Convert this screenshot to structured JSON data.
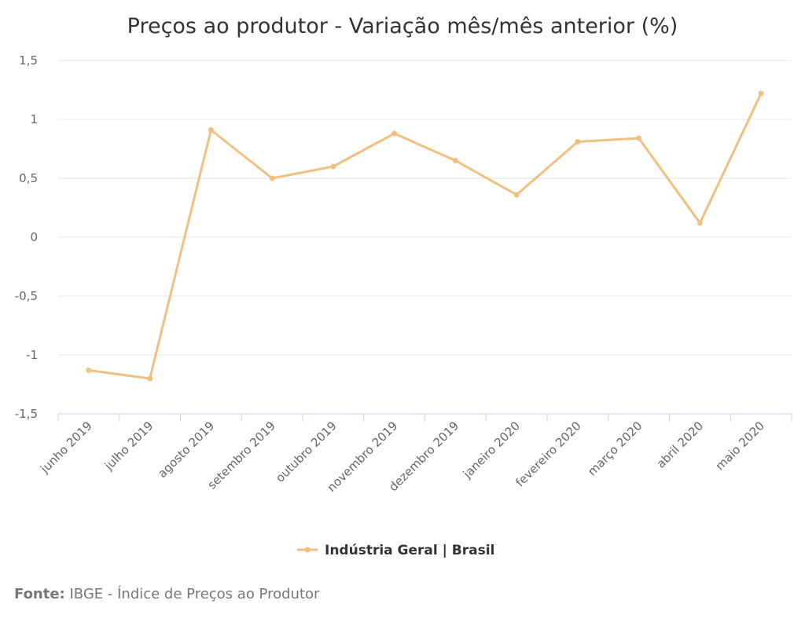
{
  "chart_data": {
    "type": "line",
    "title": "Preços ao produtor - Variação mês/mês anterior (%)",
    "categories": [
      "junho 2019",
      "julho 2019",
      "agosto 2019",
      "setembro 2019",
      "outubro 2019",
      "novembro 2019",
      "dezembro 2019",
      "janeiro 2020",
      "fevereiro 2020",
      "março 2020",
      "abril 2020",
      "maio 2020"
    ],
    "series": [
      {
        "name": "Indústria Geral | Brasil",
        "color": "#f0c080",
        "values": [
          -1.13,
          -1.2,
          0.91,
          0.5,
          0.6,
          0.88,
          0.65,
          0.36,
          0.81,
          0.84,
          0.12,
          1.22
        ]
      }
    ],
    "ylim": [
      -1.5,
      1.5
    ],
    "yticks": [
      "-1,5",
      "-1",
      "-0,5",
      "0",
      "0,5",
      "1",
      "1,5"
    ],
    "ytick_values": [
      -1.5,
      -1,
      -0.5,
      0,
      0.5,
      1,
      1.5
    ],
    "grid": true,
    "legend_position": "bottom"
  },
  "source": {
    "label": "Fonte:",
    "text": "IBGE - Índice de Preços ao Produtor"
  }
}
